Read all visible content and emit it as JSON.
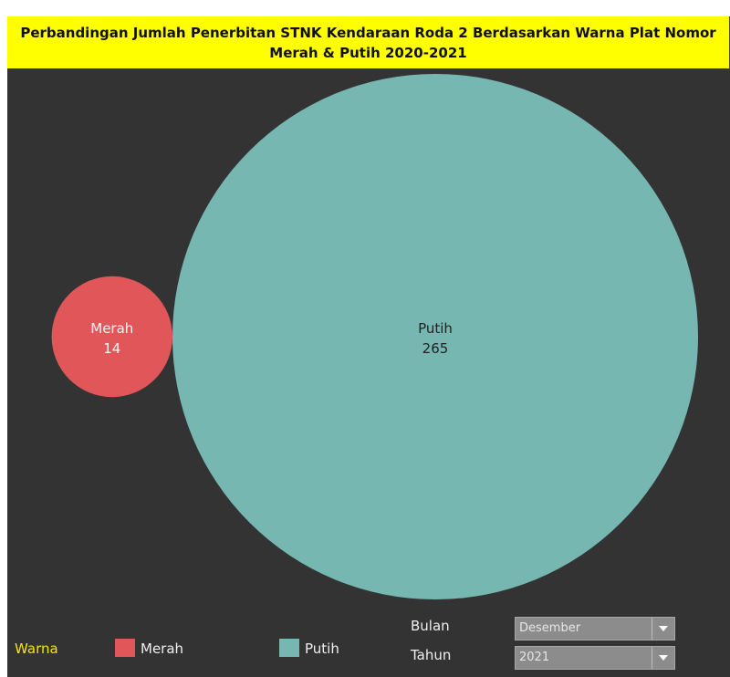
{
  "title": "Perbandingan Jumlah Penerbitan STNK Kendaraan Roda 2 Berdasarkan Warna Plat Nomor Merah & Putih 2020-2021",
  "chart_data": {
    "type": "bubble",
    "title": "Perbandingan Jumlah Penerbitan STNK Kendaraan Roda 2 Berdasarkan Warna Plat Nomor Merah & Putih 2020-2021",
    "series": [
      {
        "name": "Merah",
        "value": 14,
        "color": "#e15759"
      },
      {
        "name": "Putih",
        "value": 265,
        "color": "#76b7b2"
      }
    ],
    "legend_position": "bottom-left"
  },
  "legend": {
    "title": "Warna",
    "items": [
      {
        "label": "Merah",
        "color": "#e15759"
      },
      {
        "label": "Putih",
        "color": "#76b7b2"
      }
    ]
  },
  "filters": {
    "bulan": {
      "label": "Bulan",
      "value": "Desember"
    },
    "tahun": {
      "label": "Tahun",
      "value": "2021"
    }
  }
}
